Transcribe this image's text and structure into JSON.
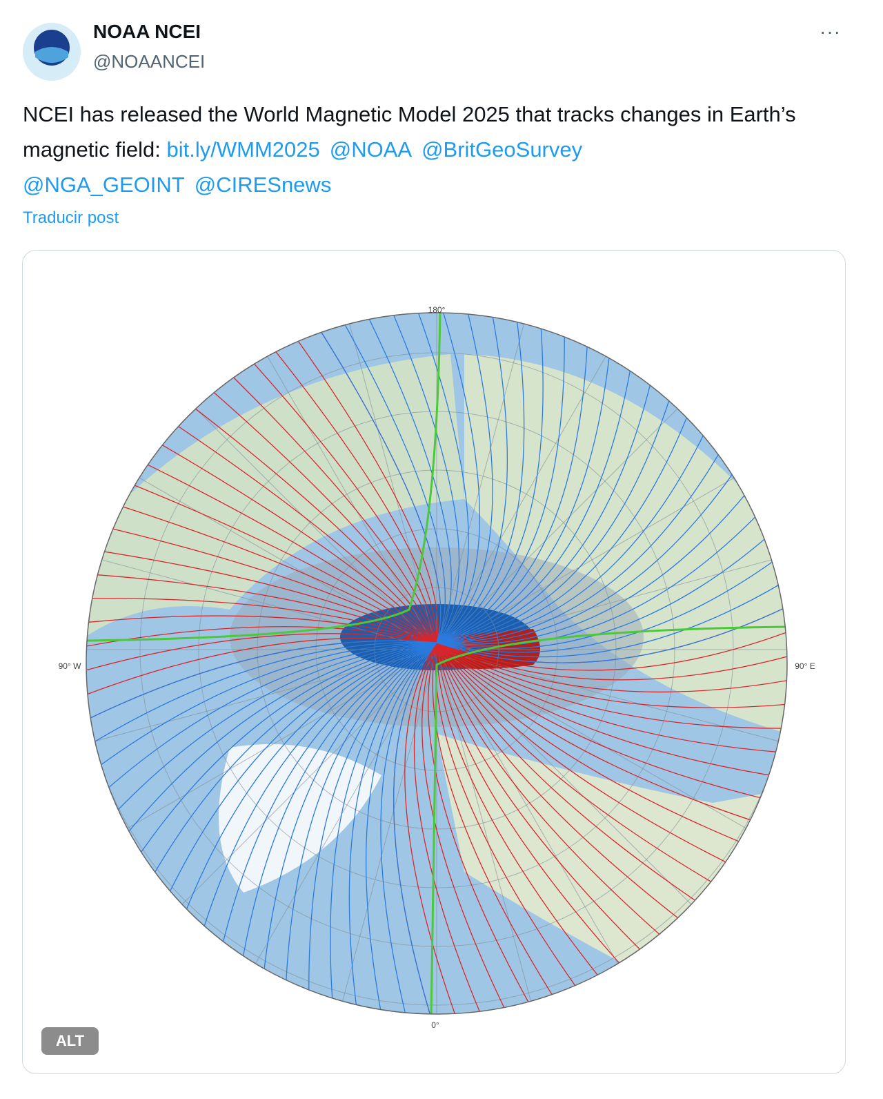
{
  "author": {
    "name": "NOAA NCEI",
    "handle": "@NOAANCEI"
  },
  "post": {
    "text": "NCEI has released the World Magnetic Model 2025 that tracks changes in Earth’s magnetic field:",
    "links": [
      "bit.ly/WMM2025",
      "@NOAA",
      "@BritGeoSurvey",
      "@NGA_GEOINT",
      "@CIRESnews"
    ],
    "translate": "Traducir post"
  },
  "media": {
    "alt_badge": "ALT",
    "map_labels": {
      "top": "180°",
      "bottom": "0°",
      "left": "90° W",
      "right": "90° E"
    }
  }
}
